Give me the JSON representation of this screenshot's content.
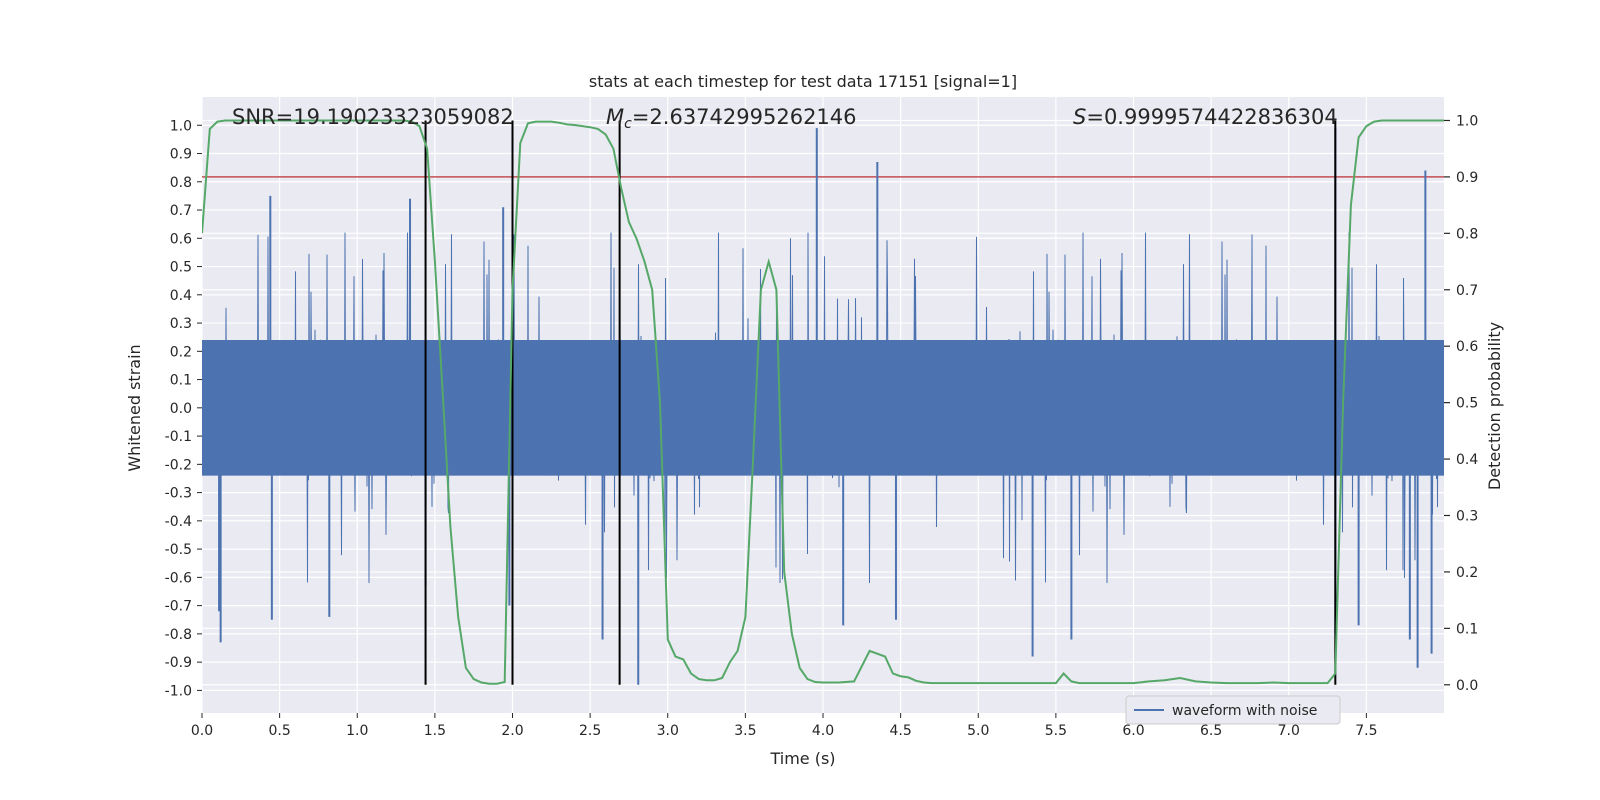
{
  "chart_data": {
    "type": "line",
    "title": "stats at each timestep for test data 17151 [signal=1]",
    "xlabel": "Time (s)",
    "ylabel": "Whitened strain",
    "y2label": "Detection probability",
    "xlim": [
      0.0,
      8.0
    ],
    "ylim": [
      -1.08,
      1.1
    ],
    "y2lim": [
      -0.05,
      1.0416
    ],
    "xticks": [
      "0.0",
      "0.5",
      "1.0",
      "1.5",
      "2.0",
      "2.5",
      "3.0",
      "3.5",
      "4.0",
      "4.5",
      "5.0",
      "5.5",
      "6.0",
      "6.5",
      "7.0",
      "7.5"
    ],
    "yticks": [
      "1.0",
      "0.9",
      "0.8",
      "0.7",
      "0.6",
      "0.5",
      "0.4",
      "0.3",
      "0.2",
      "0.1",
      "0.0",
      "-0.1",
      "-0.2",
      "-0.3",
      "-0.4",
      "-0.5",
      "-0.6",
      "-0.7",
      "-0.8",
      "-0.9",
      "-1.0"
    ],
    "y2ticks": [
      "1.0",
      "0.9",
      "0.8",
      "0.7",
      "0.6",
      "0.5",
      "0.4",
      "0.3",
      "0.2",
      "0.1",
      "0.0"
    ],
    "grid": true,
    "legend_position": "lower-right",
    "annotations": {
      "snr": "SNR=19.19023323059082",
      "mc_symbol": "M",
      "mc_sub": "c",
      "mc_value": "=2.63742995262146",
      "s_symbol": "S",
      "s_value": "=0.9999574422836304"
    },
    "threshold": {
      "axis": "y2",
      "value": 0.9
    },
    "vertical_lines": [
      1.44,
      2.0,
      2.69,
      7.3
    ],
    "series": [
      {
        "name": "waveform with noise",
        "axis": "y",
        "kind": "noise-envelope",
        "core_amplitude": 0.24,
        "spikes": [
          {
            "x": 0.11,
            "y": -0.72
          },
          {
            "x": 0.12,
            "y": -0.83
          },
          {
            "x": 0.44,
            "y": 0.75
          },
          {
            "x": 0.45,
            "y": -0.75
          },
          {
            "x": 0.82,
            "y": -0.74
          },
          {
            "x": 1.34,
            "y": 0.74
          },
          {
            "x": 1.44,
            "y": -0.63
          },
          {
            "x": 1.94,
            "y": 0.71
          },
          {
            "x": 1.98,
            "y": -0.7
          },
          {
            "x": 2.58,
            "y": -0.82
          },
          {
            "x": 2.81,
            "y": -0.98
          },
          {
            "x": 3.96,
            "y": 0.99
          },
          {
            "x": 4.13,
            "y": -0.77
          },
          {
            "x": 4.35,
            "y": 0.87
          },
          {
            "x": 4.47,
            "y": -0.75
          },
          {
            "x": 5.35,
            "y": -0.88
          },
          {
            "x": 5.6,
            "y": -0.82
          },
          {
            "x": 7.3,
            "y": 0.99
          },
          {
            "x": 7.3,
            "y": -0.8
          },
          {
            "x": 7.45,
            "y": -0.77
          },
          {
            "x": 7.78,
            "y": -0.82
          },
          {
            "x": 7.83,
            "y": -0.92
          },
          {
            "x": 7.92,
            "y": -0.87
          },
          {
            "x": 7.88,
            "y": 0.84
          }
        ]
      },
      {
        "name": "",
        "axis": "y2",
        "color": "#55a868",
        "x": [
          0.0,
          0.05,
          0.1,
          0.15,
          0.2,
          0.3,
          0.4,
          0.5,
          0.6,
          0.7,
          0.8,
          0.9,
          1.0,
          1.1,
          1.2,
          1.3,
          1.35,
          1.4,
          1.45,
          1.5,
          1.55,
          1.6,
          1.65,
          1.7,
          1.75,
          1.8,
          1.85,
          1.9,
          1.95,
          2.0,
          2.05,
          2.1,
          2.15,
          2.2,
          2.25,
          2.3,
          2.35,
          2.4,
          2.45,
          2.5,
          2.55,
          2.6,
          2.65,
          2.7,
          2.75,
          2.8,
          2.85,
          2.9,
          2.95,
          3.0,
          3.05,
          3.1,
          3.15,
          3.2,
          3.25,
          3.3,
          3.35,
          3.4,
          3.45,
          3.5,
          3.55,
          3.6,
          3.65,
          3.7,
          3.75,
          3.8,
          3.85,
          3.9,
          3.95,
          4.0,
          4.05,
          4.1,
          4.2,
          4.3,
          4.4,
          4.45,
          4.5,
          4.55,
          4.6,
          4.65,
          4.7,
          4.8,
          4.9,
          5.0,
          5.1,
          5.2,
          5.3,
          5.4,
          5.5,
          5.55,
          5.6,
          5.65,
          5.7,
          5.75,
          5.8,
          5.9,
          6.0,
          6.1,
          6.2,
          6.3,
          6.4,
          6.5,
          6.6,
          6.7,
          6.8,
          6.9,
          7.0,
          7.1,
          7.2,
          7.25,
          7.3,
          7.35,
          7.4,
          7.45,
          7.5,
          7.55,
          7.6,
          7.7,
          7.8,
          7.9,
          8.0
        ],
        "y": [
          0.8,
          0.985,
          0.998,
          1.0,
          1.0,
          1.0,
          1.0,
          1.0,
          1.0,
          1.0,
          1.0,
          1.0,
          1.0,
          1.0,
          1.0,
          1.0,
          0.998,
          0.99,
          0.95,
          0.75,
          0.52,
          0.28,
          0.12,
          0.03,
          0.01,
          0.004,
          0.002,
          0.002,
          0.005,
          0.7,
          0.96,
          0.995,
          0.998,
          0.998,
          0.998,
          0.996,
          0.993,
          0.992,
          0.99,
          0.988,
          0.985,
          0.975,
          0.95,
          0.88,
          0.82,
          0.79,
          0.75,
          0.7,
          0.5,
          0.08,
          0.05,
          0.045,
          0.02,
          0.01,
          0.008,
          0.008,
          0.012,
          0.04,
          0.06,
          0.12,
          0.4,
          0.7,
          0.75,
          0.7,
          0.2,
          0.09,
          0.03,
          0.01,
          0.005,
          0.004,
          0.004,
          0.004,
          0.006,
          0.06,
          0.05,
          0.02,
          0.015,
          0.013,
          0.007,
          0.004,
          0.003,
          0.003,
          0.003,
          0.003,
          0.003,
          0.003,
          0.003,
          0.003,
          0.003,
          0.02,
          0.006,
          0.003,
          0.003,
          0.003,
          0.003,
          0.003,
          0.003,
          0.006,
          0.008,
          0.012,
          0.006,
          0.004,
          0.003,
          0.003,
          0.003,
          0.004,
          0.003,
          0.003,
          0.003,
          0.003,
          0.02,
          0.5,
          0.85,
          0.97,
          0.99,
          0.998,
          1.0,
          1.0,
          1.0,
          1.0,
          1.0
        ]
      }
    ]
  }
}
